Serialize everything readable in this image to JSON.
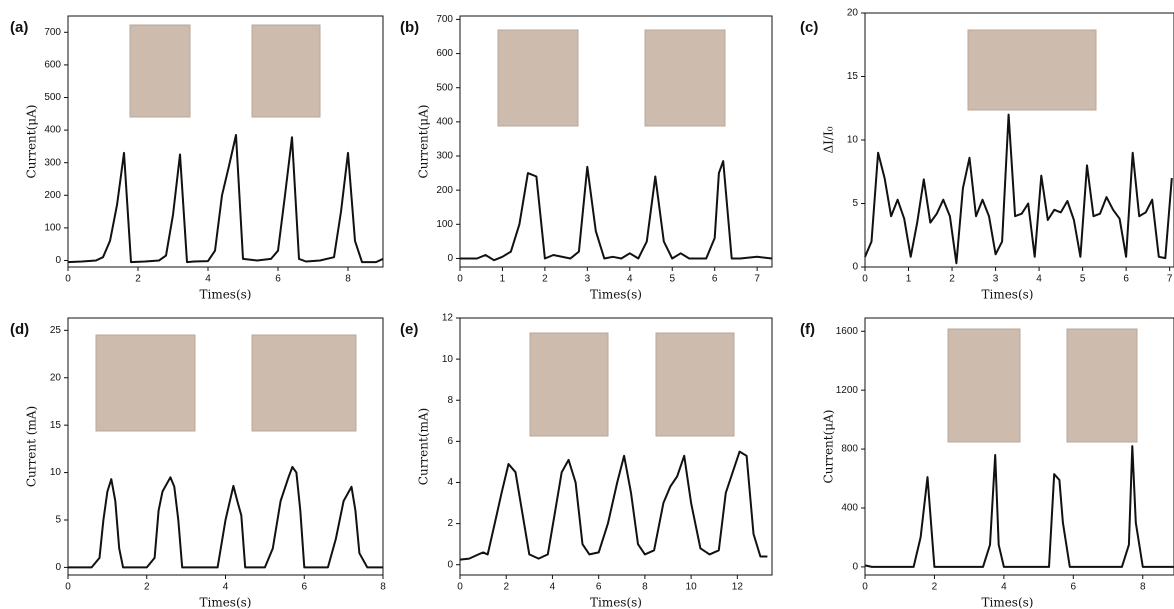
{
  "chart_data": [
    {
      "type": "line",
      "label": "(a)",
      "xlabel": "Times(s)",
      "ylabel": "Current(μA)",
      "color": "#111111",
      "xlim": [
        0,
        9
      ],
      "ylim": [
        -20,
        750
      ],
      "xticks": [
        0,
        2,
        4,
        6,
        8
      ],
      "yticks": [
        0,
        100,
        200,
        300,
        400,
        500,
        600,
        700
      ],
      "x": [
        0,
        0.4,
        0.8,
        1.0,
        1.2,
        1.4,
        1.6,
        1.8,
        2.2,
        2.6,
        2.8,
        3.0,
        3.2,
        3.4,
        3.6,
        4.0,
        4.2,
        4.4,
        4.6,
        4.8,
        5.0,
        5.4,
        5.8,
        6.0,
        6.2,
        6.4,
        6.6,
        6.8,
        7.2,
        7.6,
        7.8,
        8.0,
        8.2,
        8.4,
        8.8,
        9.0
      ],
      "values": [
        -5,
        -3,
        0,
        10,
        60,
        170,
        330,
        -5,
        -3,
        0,
        15,
        140,
        325,
        -5,
        -3,
        -2,
        30,
        200,
        290,
        385,
        5,
        0,
        5,
        30,
        200,
        378,
        5,
        -3,
        0,
        10,
        150,
        330,
        60,
        -5,
        -5,
        5
      ]
    },
    {
      "type": "line",
      "label": "(b)",
      "xlabel": "Times(s)",
      "ylabel": "Current(μA)",
      "color": "#111111",
      "xlim": [
        0,
        7.35
      ],
      "ylim": [
        -25,
        710
      ],
      "xticks": [
        0,
        1,
        2,
        3,
        4,
        5,
        6,
        7
      ],
      "yticks": [
        0,
        100,
        200,
        300,
        400,
        500,
        600,
        700
      ],
      "x": [
        0,
        0.4,
        0.6,
        0.8,
        1.0,
        1.2,
        1.4,
        1.6,
        1.8,
        2.0,
        2.2,
        2.6,
        2.8,
        3.0,
        3.2,
        3.4,
        3.6,
        3.8,
        4.0,
        4.2,
        4.4,
        4.6,
        4.8,
        5.0,
        5.2,
        5.4,
        5.8,
        6.0,
        6.1,
        6.2,
        6.4,
        6.6,
        7.0,
        7.35
      ],
      "values": [
        0,
        0,
        10,
        -5,
        5,
        20,
        100,
        250,
        240,
        0,
        10,
        0,
        20,
        268,
        80,
        0,
        5,
        0,
        15,
        0,
        50,
        240,
        50,
        0,
        15,
        0,
        0,
        60,
        250,
        285,
        0,
        0,
        5,
        0
      ]
    },
    {
      "type": "line",
      "label": "(c)",
      "xlabel": "Times(s)",
      "ylabel": "ΔI/I₀",
      "color": "#111111",
      "xlim": [
        0,
        7.1
      ],
      "ylim": [
        0,
        20
      ],
      "xticks": [
        0,
        1,
        2,
        3,
        4,
        5,
        6,
        7
      ],
      "yticks": [
        0,
        5,
        10,
        15,
        20
      ],
      "x": [
        0,
        0.15,
        0.3,
        0.45,
        0.6,
        0.75,
        0.9,
        1.05,
        1.2,
        1.35,
        1.5,
        1.65,
        1.8,
        1.95,
        2.1,
        2.25,
        2.4,
        2.55,
        2.7,
        2.85,
        3.0,
        3.15,
        3.3,
        3.45,
        3.6,
        3.75,
        3.9,
        4.05,
        4.2,
        4.35,
        4.5,
        4.65,
        4.8,
        4.95,
        5.1,
        5.25,
        5.4,
        5.55,
        5.7,
        5.85,
        6.0,
        6.15,
        6.3,
        6.45,
        6.6,
        6.75,
        6.9,
        7.05
      ],
      "values": [
        0.8,
        2,
        9,
        7,
        4,
        5.3,
        3.8,
        0.8,
        3.5,
        6.9,
        3.5,
        4.2,
        5.3,
        4,
        0.3,
        6.2,
        8.6,
        4,
        5.3,
        4,
        1,
        2,
        12,
        4,
        4.2,
        5,
        0.8,
        7.2,
        3.7,
        4.5,
        4.3,
        5.2,
        3.7,
        0.8,
        8,
        4,
        4.2,
        5.5,
        4.5,
        3.8,
        0.8,
        9,
        4,
        4.3,
        5.3,
        0.8,
        0.7,
        7
      ]
    },
    {
      "type": "line",
      "label": "(d)",
      "xlabel": "Times(s)",
      "ylabel": "Current (mA)",
      "color": "#111111",
      "xlim": [
        0,
        8
      ],
      "ylim": [
        -0.8,
        26.3
      ],
      "xticks": [
        0,
        2,
        4,
        6,
        8
      ],
      "yticks": [
        0,
        5,
        10,
        15,
        20,
        25
      ],
      "x": [
        0,
        0.4,
        0.6,
        0.8,
        0.9,
        1.0,
        1.1,
        1.2,
        1.3,
        1.4,
        1.8,
        2.0,
        2.2,
        2.3,
        2.4,
        2.6,
        2.7,
        2.8,
        2.9,
        3.4,
        3.8,
        4.0,
        4.2,
        4.3,
        4.4,
        4.5,
        5.0,
        5.2,
        5.4,
        5.6,
        5.7,
        5.8,
        5.9,
        6.0,
        6.6,
        6.8,
        7.0,
        7.2,
        7.3,
        7.4,
        7.6,
        8.0
      ],
      "values": [
        0,
        0,
        0,
        1,
        5,
        8,
        9.3,
        7,
        2,
        0,
        0,
        0,
        1,
        6,
        8,
        9.5,
        8.5,
        5,
        0,
        0,
        0,
        5,
        8.6,
        7,
        5.5,
        0,
        0,
        2,
        7,
        9.5,
        10.6,
        10,
        6,
        0,
        0,
        3,
        7,
        8.5,
        6,
        1.5,
        0,
        0
      ]
    },
    {
      "type": "line",
      "label": "(e)",
      "xlabel": "Times(s)",
      "ylabel": "Current(mA)",
      "color": "#111111",
      "xlim": [
        0,
        13.5
      ],
      "ylim": [
        -0.5,
        12
      ],
      "xticks": [
        0,
        2,
        4,
        6,
        8,
        10,
        12
      ],
      "yticks": [
        0,
        2,
        4,
        6,
        8,
        10,
        12
      ],
      "x": [
        0,
        0.4,
        0.8,
        1.0,
        1.2,
        1.5,
        1.8,
        2.1,
        2.4,
        2.7,
        3.0,
        3.4,
        3.8,
        4.1,
        4.4,
        4.7,
        5.0,
        5.3,
        5.6,
        6.0,
        6.4,
        6.8,
        7.1,
        7.4,
        7.7,
        8.0,
        8.4,
        8.8,
        9.1,
        9.4,
        9.7,
        10.0,
        10.4,
        10.8,
        11.2,
        11.5,
        11.8,
        12.1,
        12.4,
        12.7,
        13.0,
        13.3
      ],
      "values": [
        0.25,
        0.3,
        0.5,
        0.6,
        0.5,
        2,
        3.5,
        4.9,
        4.5,
        2.5,
        0.5,
        0.3,
        0.5,
        2.5,
        4.5,
        5.1,
        4,
        1,
        0.5,
        0.6,
        2,
        4,
        5.3,
        3.5,
        1,
        0.5,
        0.7,
        3,
        3.8,
        4.3,
        5.3,
        3,
        0.8,
        0.5,
        0.7,
        3.5,
        4.5,
        5.5,
        5.3,
        1.5,
        0.4,
        0.4
      ]
    },
    {
      "type": "line",
      "label": "(f)",
      "xlabel": "Times(s)",
      "ylabel": "Current(μA)",
      "color": "#111111",
      "xlim": [
        0,
        8.9
      ],
      "ylim": [
        -55,
        1690
      ],
      "xticks": [
        0,
        2,
        4,
        6,
        8
      ],
      "yticks": [
        0,
        400,
        800,
        1200,
        1600
      ],
      "x": [
        0,
        0.2,
        0.6,
        1.0,
        1.4,
        1.6,
        1.8,
        1.9,
        2.0,
        2.4,
        3.0,
        3.4,
        3.6,
        3.75,
        3.85,
        4.0,
        4.4,
        5.0,
        5.3,
        5.45,
        5.6,
        5.7,
        5.9,
        6.4,
        7.0,
        7.4,
        7.6,
        7.7,
        7.8,
        8.0,
        8.6,
        8.9
      ],
      "values": [
        10,
        0,
        0,
        0,
        0,
        200,
        610,
        300,
        0,
        0,
        0,
        0,
        150,
        760,
        150,
        0,
        0,
        0,
        0,
        630,
        590,
        300,
        0,
        0,
        0,
        0,
        150,
        820,
        300,
        0,
        0,
        0
      ]
    }
  ]
}
